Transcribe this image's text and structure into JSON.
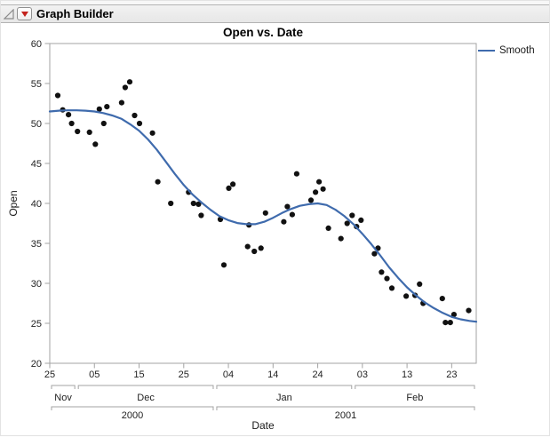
{
  "window": {
    "header": {
      "title": "Graph Builder",
      "disclosure_icon": "open-disclosure-triangle",
      "menu_icon": "red-triangle-menu"
    }
  },
  "legend": {
    "label": "Smooth"
  },
  "chart_data": {
    "type": "scatter",
    "title": "Open vs. Date",
    "xlabel": "Date",
    "ylabel": "Open",
    "legend_position": "right-top",
    "grid": false,
    "x_unit": "days since 2000-11-25",
    "xlim": [
      0,
      95.5
    ],
    "ylim": [
      20,
      60
    ],
    "y_ticks": [
      60,
      55,
      50,
      45,
      40,
      35,
      30,
      25,
      20
    ],
    "x_ticks": [
      {
        "day": 0,
        "label": "25"
      },
      {
        "day": 10,
        "label": "05"
      },
      {
        "day": 20,
        "label": "15"
      },
      {
        "day": 30,
        "label": "25"
      },
      {
        "day": 40,
        "label": "04"
      },
      {
        "day": 50,
        "label": "14"
      },
      {
        "day": 60,
        "label": "24"
      },
      {
        "day": 70,
        "label": "03"
      },
      {
        "day": 80,
        "label": "13"
      },
      {
        "day": 90,
        "label": "23"
      }
    ],
    "month_groups": [
      {
        "label": "Nov",
        "start": 0,
        "end": 6
      },
      {
        "label": "Dec",
        "start": 6,
        "end": 37
      },
      {
        "label": "Jan",
        "start": 37,
        "end": 68
      },
      {
        "label": "Feb",
        "start": 68,
        "end": 95.5
      }
    ],
    "year_groups": [
      {
        "label": "2000",
        "start": 0,
        "end": 37
      },
      {
        "label": "2001",
        "start": 37,
        "end": 95.5
      }
    ],
    "series": [
      {
        "name": "Open points",
        "type": "scatter",
        "marker": "filled-circle"
      },
      {
        "name": "Smooth",
        "type": "line"
      }
    ],
    "points": [
      [
        1.8,
        53.5
      ],
      [
        2.9,
        51.7
      ],
      [
        4.2,
        51.1
      ],
      [
        4.9,
        50.0
      ],
      [
        6.2,
        49.0
      ],
      [
        8.9,
        48.9
      ],
      [
        10.2,
        47.4
      ],
      [
        11.1,
        51.8
      ],
      [
        12.1,
        50.0
      ],
      [
        12.8,
        52.1
      ],
      [
        16.1,
        52.6
      ],
      [
        16.9,
        54.5
      ],
      [
        17.9,
        55.2
      ],
      [
        19.0,
        51.0
      ],
      [
        20.1,
        50.0
      ],
      [
        23.0,
        48.8
      ],
      [
        24.2,
        42.7
      ],
      [
        27.1,
        40.0
      ],
      [
        31.1,
        41.4
      ],
      [
        32.2,
        40.0
      ],
      [
        33.3,
        39.9
      ],
      [
        33.9,
        38.5
      ],
      [
        38.2,
        38.0
      ],
      [
        39.0,
        32.3
      ],
      [
        40.1,
        41.9
      ],
      [
        41.0,
        42.4
      ],
      [
        44.3,
        34.6
      ],
      [
        44.6,
        37.3
      ],
      [
        45.8,
        34.0
      ],
      [
        47.3,
        34.4
      ],
      [
        48.3,
        38.8
      ],
      [
        52.4,
        37.7
      ],
      [
        53.2,
        39.6
      ],
      [
        54.3,
        38.6
      ],
      [
        55.3,
        43.7
      ],
      [
        58.5,
        40.4
      ],
      [
        59.5,
        41.4
      ],
      [
        60.3,
        42.7
      ],
      [
        61.2,
        41.8
      ],
      [
        62.4,
        36.9
      ],
      [
        65.2,
        35.6
      ],
      [
        66.6,
        37.5
      ],
      [
        67.7,
        38.5
      ],
      [
        68.7,
        37.1
      ],
      [
        69.7,
        37.9
      ],
      [
        72.7,
        33.7
      ],
      [
        73.5,
        34.4
      ],
      [
        74.3,
        31.4
      ],
      [
        75.5,
        30.6
      ],
      [
        76.6,
        29.4
      ],
      [
        79.8,
        28.4
      ],
      [
        81.8,
        28.5
      ],
      [
        82.8,
        29.9
      ],
      [
        83.6,
        27.5
      ],
      [
        87.9,
        28.1
      ],
      [
        88.6,
        25.1
      ],
      [
        89.7,
        25.1
      ],
      [
        90.5,
        26.1
      ],
      [
        93.8,
        26.6
      ]
    ],
    "smooth": [
      [
        0,
        51.5
      ],
      [
        2,
        51.6
      ],
      [
        4,
        51.65
      ],
      [
        6,
        51.65
      ],
      [
        8,
        51.6
      ],
      [
        10,
        51.5
      ],
      [
        12,
        51.3
      ],
      [
        14,
        51.0
      ],
      [
        16,
        50.6
      ],
      [
        18,
        49.9
      ],
      [
        20,
        49.1
      ],
      [
        22,
        48.0
      ],
      [
        24,
        46.7
      ],
      [
        26,
        45.2
      ],
      [
        28,
        43.7
      ],
      [
        30,
        42.3
      ],
      [
        32,
        41.1
      ],
      [
        34,
        40.1
      ],
      [
        36,
        39.2
      ],
      [
        38,
        38.4
      ],
      [
        40,
        37.9
      ],
      [
        42,
        37.55
      ],
      [
        44,
        37.4
      ],
      [
        46,
        37.4
      ],
      [
        48,
        37.7
      ],
      [
        50,
        38.2
      ],
      [
        52,
        38.8
      ],
      [
        54,
        39.3
      ],
      [
        56,
        39.7
      ],
      [
        58,
        39.9
      ],
      [
        60,
        40.0
      ],
      [
        62,
        39.8
      ],
      [
        64,
        39.2
      ],
      [
        66,
        38.4
      ],
      [
        68,
        37.4
      ],
      [
        70,
        36.2
      ],
      [
        72,
        34.9
      ],
      [
        74,
        33.5
      ],
      [
        76,
        32.0
      ],
      [
        78,
        30.7
      ],
      [
        80,
        29.5
      ],
      [
        82,
        28.5
      ],
      [
        84,
        27.6
      ],
      [
        86,
        26.9
      ],
      [
        88,
        26.3
      ],
      [
        90,
        25.8
      ],
      [
        92,
        25.5
      ],
      [
        94,
        25.3
      ],
      [
        95.5,
        25.2
      ]
    ],
    "colors": {
      "point": "#111111",
      "smooth": "#3f6bad",
      "axis": "#a3a3a3",
      "text": "#1f1f1f",
      "red_triangle": "#c3231e"
    }
  }
}
